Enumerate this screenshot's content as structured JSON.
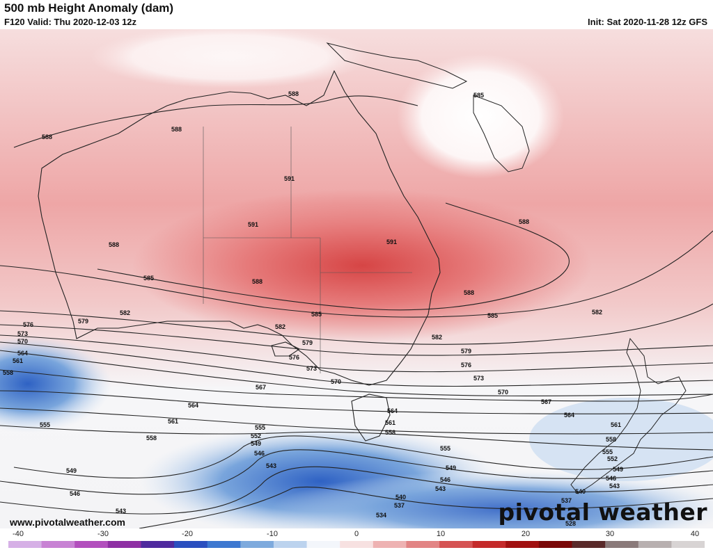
{
  "header": {
    "title": "500 mb Height Anomaly (dam)",
    "valid": "F120 Valid: Thu 2020-12-03 12z",
    "init": "Init: Sat 2020-11-28 12z GFS"
  },
  "footer": {
    "url": "www.pivotalweather.com",
    "brand": "pivotal weather"
  },
  "colorbar": {
    "ticks": [
      "-40",
      "-30",
      "-20",
      "-10",
      "0",
      "10",
      "20",
      "30",
      "40"
    ],
    "min": -40,
    "max": 40,
    "colors": [
      "#d6b0e6",
      "#c882d4",
      "#b24fbd",
      "#8e2fa3",
      "#4f2a9e",
      "#2a4fbf",
      "#3d78d0",
      "#7eaadd",
      "#bcd3ee",
      "#f3f6fb",
      "#f7e1e1",
      "#eeb2b2",
      "#e28484",
      "#d55353",
      "#c42a2a",
      "#a11010",
      "#7a0808",
      "#5a2a2a",
      "#8a7a7a",
      "#b8b0b0",
      "#d8d4d4"
    ]
  },
  "contour_labels": [
    "585",
    "588",
    "591",
    "582",
    "579",
    "576",
    "573",
    "570",
    "567",
    "564",
    "561",
    "558",
    "555",
    "552",
    "549",
    "546",
    "543",
    "540",
    "537",
    "534",
    "528"
  ]
}
